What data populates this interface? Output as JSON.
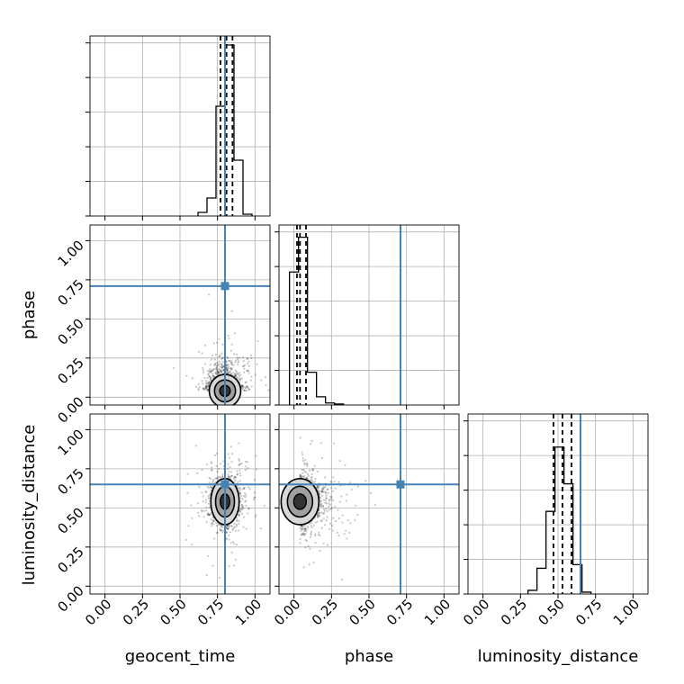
{
  "chart_data": {
    "type": "corner",
    "parameters": [
      "geocent_time",
      "phase",
      "luminosity_distance"
    ],
    "axis_labels": {
      "x": [
        "geocent_time",
        "phase",
        "luminosity_distance"
      ],
      "y": [
        "",
        "phase",
        "luminosity_distance"
      ]
    },
    "tick_values": [
      0.0,
      0.25,
      0.5,
      0.75,
      1.0
    ],
    "tick_labels": [
      "0.00",
      "0.25",
      "0.50",
      "0.75",
      "1.00"
    ],
    "xlim": [
      -0.1,
      1.1
    ],
    "ylim": [
      -0.05,
      1.1
    ],
    "grid": true,
    "truth_color": "#4682b4",
    "hist_color": "#000000",
    "truths": {
      "geocent_time": 0.8,
      "phase": 0.71,
      "luminosity_distance": 0.65
    },
    "histograms": [
      {
        "parameter": "geocent_time",
        "bin_edges": [
          0.62,
          0.68,
          0.74,
          0.8,
          0.86,
          0.92,
          0.98
        ],
        "counts": [
          0.02,
          0.1,
          0.61,
          0.95,
          0.31,
          0.01
        ],
        "ylim": [
          0,
          1.0
        ],
        "quantiles": [
          0.77,
          0.81,
          0.85
        ]
      },
      {
        "parameter": "phase",
        "bin_edges": [
          -0.03,
          0.03,
          0.09,
          0.15,
          0.21,
          0.27,
          0.33
        ],
        "counts": [
          0.65,
          0.82,
          0.16,
          0.04,
          0.01,
          0.005
        ],
        "ylim": [
          0,
          0.88
        ],
        "quantiles": [
          0.02,
          0.04,
          0.08
        ]
      },
      {
        "parameter": "luminosity_distance",
        "bin_edges": [
          0.3,
          0.36,
          0.42,
          0.48,
          0.54,
          0.6,
          0.66,
          0.72
        ],
        "counts": [
          0.02,
          0.14,
          0.45,
          0.8,
          0.6,
          0.16,
          0.01
        ],
        "ylim": [
          0,
          0.98
        ],
        "quantiles": [
          0.47,
          0.53,
          0.59
        ]
      }
    ],
    "scatter_panels": [
      {
        "x_parameter": "geocent_time",
        "y_parameter": "phase",
        "center": [
          0.8,
          0.04
        ],
        "spread": [
          0.05,
          0.05
        ]
      },
      {
        "x_parameter": "geocent_time",
        "y_parameter": "luminosity_distance",
        "center": [
          0.8,
          0.54
        ],
        "spread": [
          0.045,
          0.07
        ]
      },
      {
        "x_parameter": "phase",
        "y_parameter": "luminosity_distance",
        "center": [
          0.04,
          0.54
        ],
        "spread": [
          0.06,
          0.07
        ]
      }
    ]
  }
}
